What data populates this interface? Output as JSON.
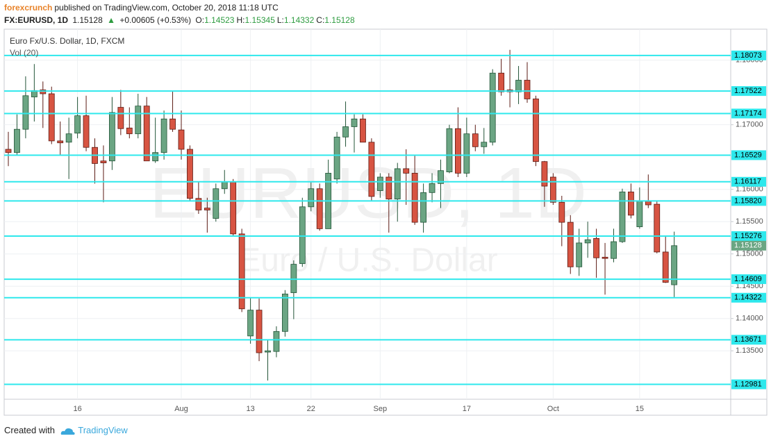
{
  "header": {
    "author": "forexcrunch",
    "published": "published on TradingView.com, October 20, 2018 11:18 UTC",
    "symbol": "FX:EURUSD, 1D",
    "price": "1.15128",
    "change": "+0.00605 (+0.53%)",
    "ohlc": [
      {
        "label": "O:",
        "value": "1.14523"
      },
      {
        "label": "H:",
        "value": "1.15345"
      },
      {
        "label": "L:",
        "value": "1.14332"
      },
      {
        "label": "C:",
        "value": "1.15128"
      }
    ]
  },
  "footer": {
    "created": "Created with",
    "brand": "TradingView"
  },
  "chart_data": {
    "type": "candlestick",
    "title": "Euro Fx/U.S. Dollar, 1D, FXCM",
    "subtitle": "Vol (20)",
    "watermark": [
      "EURUSD, 1D",
      "Euro / U.S. Dollar"
    ],
    "categories": [
      null,
      null,
      null,
      null,
      null,
      null,
      null,
      null,
      "16",
      null,
      null,
      null,
      null,
      null,
      null,
      null,
      null,
      null,
      null,
      null,
      "Aug",
      null,
      null,
      null,
      null,
      null,
      null,
      null,
      "13",
      null,
      null,
      null,
      null,
      null,
      null,
      "22",
      null,
      null,
      null,
      null,
      null,
      null,
      null,
      "Sep",
      null,
      null,
      null,
      null,
      null,
      null,
      null,
      null,
      null,
      "17",
      null,
      null,
      null,
      null,
      null,
      null,
      null,
      null,
      null,
      "Oct",
      null,
      null,
      null,
      null,
      null,
      null,
      null,
      null,
      null,
      "15",
      null,
      null,
      null,
      null
    ],
    "open": [
      1.1662,
      1.1657,
      1.1693,
      1.1743,
      1.1754,
      1.1748,
      1.1675,
      1.1673,
      1.1687,
      1.1714,
      1.1665,
      1.1644,
      1.1644,
      1.1727,
      1.1695,
      1.1686,
      1.1729,
      1.1644,
      1.1657,
      1.1709,
      1.1692,
      1.1662,
      1.1586,
      1.1571,
      1.1555,
      1.1601,
      1.1612,
      1.1531,
      1.1373,
      1.1413,
      1.1348,
      1.1349,
      1.138,
      1.144,
      1.1485,
      1.1573,
      1.1601,
      1.1539,
      1.1616,
      1.1681,
      1.1697,
      1.1709,
      1.1673,
      1.1598,
      1.1619,
      1.1585,
      1.1632,
      1.1625,
      1.1549,
      1.1595,
      1.1609,
      1.1627,
      1.1694,
      1.1625,
      1.1686,
      1.1666,
      1.1673,
      1.178,
      1.1754,
      1.1751,
      1.1769,
      1.174,
      1.1643,
      1.1619,
      1.158,
      1.1549,
      1.148,
      1.1517,
      1.1524,
      1.1495,
      1.1493,
      1.1519,
      1.1596,
      1.1542,
      1.1582,
      1.1577,
      1.1503,
      1.14523
    ],
    "high": [
      1.1689,
      1.1716,
      1.1775,
      1.1794,
      1.1767,
      1.1759,
      1.1705,
      1.1711,
      1.1743,
      1.1745,
      1.1679,
      1.1668,
      1.1743,
      1.1754,
      1.1727,
      1.1748,
      1.1743,
      1.1711,
      1.1722,
      1.1752,
      1.1722,
      1.1668,
      1.1612,
      1.1587,
      1.1609,
      1.163,
      1.1616,
      1.1539,
      1.1433,
      1.1431,
      1.1367,
      1.1388,
      1.1444,
      1.149,
      1.1587,
      1.1612,
      1.1609,
      1.1646,
      1.1689,
      1.1736,
      1.1716,
      1.1716,
      1.1679,
      1.1625,
      1.1625,
      1.1641,
      1.1662,
      1.1652,
      1.1609,
      1.1625,
      1.1646,
      1.17,
      1.1727,
      1.1711,
      1.17,
      1.1695,
      1.1786,
      1.1802,
      1.1816,
      1.1791,
      1.1797,
      1.1745,
      1.1644,
      1.1625,
      1.159,
      1.156,
      1.1539,
      1.155,
      1.1539,
      1.1517,
      1.1539,
      1.1601,
      1.1609,
      1.1603,
      1.1623,
      1.1582,
      1.1528,
      1.15345
    ],
    "low": [
      1.1636,
      1.1652,
      1.1679,
      1.1705,
      1.1695,
      1.167,
      1.1652,
      1.1616,
      1.1679,
      1.1659,
      1.1609,
      1.158,
      1.163,
      1.1684,
      1.1679,
      1.1679,
      1.1644,
      1.1641,
      1.1646,
      1.1689,
      1.1646,
      1.1582,
      1.1562,
      1.1533,
      1.155,
      1.1593,
      1.1528,
      1.141,
      1.1361,
      1.1334,
      1.1304,
      1.134,
      1.1372,
      1.1399,
      1.148,
      1.1566,
      1.1536,
      1.1539,
      1.1609,
      1.1666,
      1.1657,
      1.1673,
      1.1582,
      1.1587,
      1.1533,
      1.155,
      1.1576,
      1.1545,
      1.1533,
      1.158,
      1.1571,
      1.1625,
      1.1619,
      1.1619,
      1.1659,
      1.1655,
      1.1668,
      1.1745,
      1.1727,
      1.1732,
      1.1734,
      1.1636,
      1.1573,
      1.1576,
      1.1512,
      1.1469,
      1.1466,
      1.1494,
      1.1463,
      1.1437,
      1.1487,
      1.1517,
      1.1555,
      1.1539,
      1.1571,
      1.1501,
      1.1455,
      1.14332
    ],
    "close": [
      1.1657,
      1.1693,
      1.1745,
      1.1753,
      1.1748,
      1.1675,
      1.1672,
      1.1686,
      1.1714,
      1.1665,
      1.164,
      1.1641,
      1.1719,
      1.1694,
      1.1686,
      1.1729,
      1.1644,
      1.1657,
      1.1709,
      1.1693,
      1.1662,
      1.1586,
      1.1568,
      1.1568,
      1.1601,
      1.1612,
      1.1531,
      1.1415,
      1.1413,
      1.1347,
      1.135,
      1.138,
      1.1438,
      1.1484,
      1.1573,
      1.1601,
      1.1539,
      1.1625,
      1.1681,
      1.1697,
      1.1709,
      1.1673,
      1.1589,
      1.1619,
      1.1585,
      1.1632,
      1.1625,
      1.1549,
      1.1595,
      1.1609,
      1.1629,
      1.1694,
      1.1625,
      1.1686,
      1.1666,
      1.1673,
      1.178,
      1.1751,
      1.1751,
      1.1769,
      1.174,
      1.1643,
      1.1605,
      1.158,
      1.1549,
      1.148,
      1.1517,
      1.1522,
      1.1494,
      1.1493,
      1.1519,
      1.1596,
      1.156,
      1.1582,
      1.1576,
      1.1503,
      1.1456,
      1.15128
    ],
    "up_color": "#6ba583",
    "down_color": "#d75442",
    "levels": [
      1.18073,
      1.17522,
      1.17174,
      1.16529,
      1.16117,
      {
        "value": 1.1582,
        "label": "1.15820"
      },
      1.15276,
      1.14609,
      1.14322,
      1.13671,
      1.12981
    ],
    "level_color": "#2ee8ec",
    "ylim": [
      1.1275,
      1.1848
    ],
    "yticks": [
      {
        "value": 1.18,
        "label": "1.18000"
      },
      {
        "value": 1.17,
        "label": "1.17000"
      },
      {
        "value": 1.16,
        "label": "1.16000"
      },
      {
        "value": 1.155,
        "label": "1.15500"
      },
      {
        "value": 1.15,
        "label": "1.15000"
      },
      {
        "value": 1.145,
        "label": "1.14500"
      },
      {
        "value": 1.14,
        "label": "1.14000"
      },
      {
        "value": 1.135,
        "label": "1.13500"
      }
    ],
    "grid": true
  }
}
